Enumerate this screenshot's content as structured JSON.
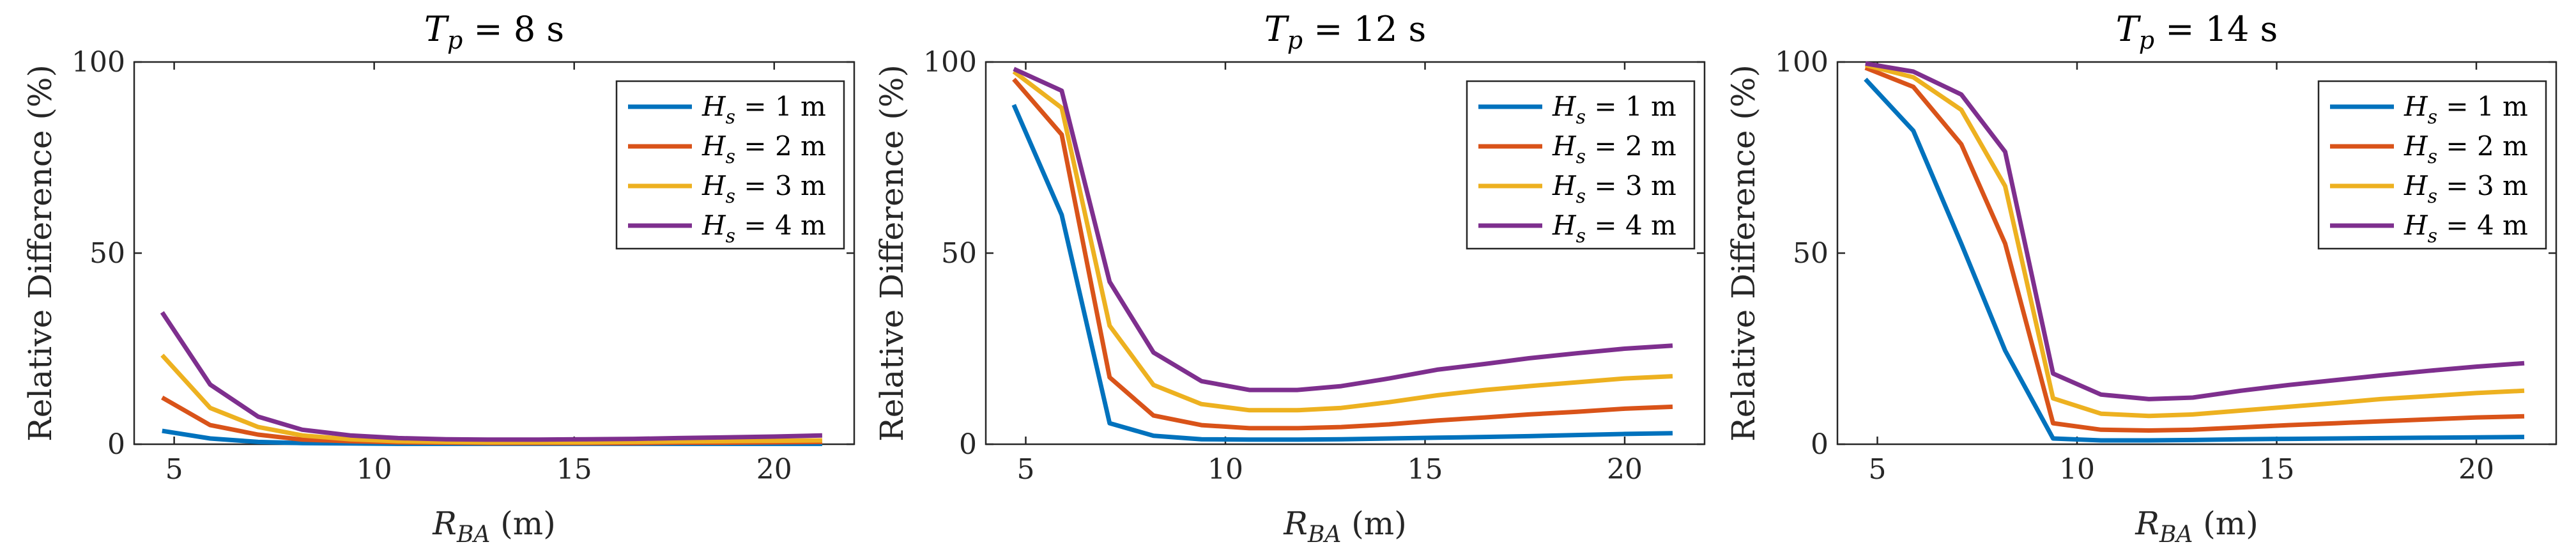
{
  "chart_data": [
    {
      "type": "line",
      "title": "T_p = 8 s",
      "title_parts": {
        "var": "T",
        "sub": "p",
        "rest": " = 8 s"
      },
      "xlabel": "R_BA (m)",
      "xlabel_parts": {
        "var": "R",
        "sub": "BA",
        "rest": " (m)"
      },
      "ylabel": "Relative Difference (%)",
      "xlim": [
        4,
        22
      ],
      "ylim": [
        0,
        100
      ],
      "xticks": [
        5,
        10,
        15,
        20
      ],
      "yticks": [
        0,
        50,
        100
      ],
      "x": [
        4.7,
        5.9,
        7.1,
        8.2,
        9.4,
        10.6,
        11.8,
        12.9,
        14.1,
        15.3,
        16.5,
        17.6,
        18.8,
        20.0,
        21.2
      ],
      "series": [
        {
          "name": "H_s = 1 m",
          "label_parts": {
            "var": "H",
            "sub": "s",
            "rest": " = 1 m"
          },
          "color": "#0072BD",
          "values": [
            3.5,
            1.5,
            0.6,
            0.3,
            0.2,
            0.1,
            0.1,
            0.1,
            0.1,
            0.1,
            0.1,
            0.1,
            0.1,
            0.1,
            0.1
          ]
        },
        {
          "name": "H_s = 2 m",
          "label_parts": {
            "var": "H",
            "sub": "s",
            "rest": " = 2 m"
          },
          "color": "#D95319",
          "values": [
            12.2,
            5.0,
            2.5,
            1.2,
            0.8,
            0.5,
            0.4,
            0.3,
            0.3,
            0.3,
            0.3,
            0.4,
            0.4,
            0.5,
            0.6
          ]
        },
        {
          "name": "H_s = 3 m",
          "label_parts": {
            "var": "H",
            "sub": "s",
            "rest": " = 3 m"
          },
          "color": "#EDB120",
          "values": [
            23.3,
            9.5,
            4.5,
            2.3,
            1.3,
            0.8,
            0.6,
            0.5,
            0.5,
            0.5,
            0.6,
            0.7,
            0.8,
            0.9,
            1.0
          ]
        },
        {
          "name": "H_s = 4 m",
          "label_parts": {
            "var": "H",
            "sub": "s",
            "rest": " = 4 m"
          },
          "color": "#7E2F8E",
          "values": [
            34.5,
            15.6,
            7.2,
            3.8,
            2.3,
            1.6,
            1.3,
            1.2,
            1.2,
            1.3,
            1.4,
            1.6,
            1.8,
            2.0,
            2.3
          ]
        }
      ],
      "legend": "top-right"
    },
    {
      "type": "line",
      "title": "T_p = 12 s",
      "title_parts": {
        "var": "T",
        "sub": "p",
        "rest": " = 12 s"
      },
      "xlabel": "R_BA (m)",
      "xlabel_parts": {
        "var": "R",
        "sub": "BA",
        "rest": " (m)"
      },
      "ylabel": "Relative Difference (%)",
      "xlim": [
        4,
        22
      ],
      "ylim": [
        0,
        100
      ],
      "xticks": [
        5,
        10,
        15,
        20
      ],
      "yticks": [
        0,
        50,
        100
      ],
      "x": [
        4.7,
        5.9,
        7.1,
        8.2,
        9.4,
        10.6,
        11.8,
        12.9,
        14.1,
        15.3,
        16.5,
        17.6,
        18.8,
        20.0,
        21.2
      ],
      "series": [
        {
          "name": "H_s = 1 m",
          "label_parts": {
            "var": "H",
            "sub": "s",
            "rest": " = 1 m"
          },
          "color": "#0072BD",
          "values": [
            88.8,
            60.0,
            5.5,
            2.2,
            1.3,
            1.2,
            1.2,
            1.3,
            1.5,
            1.7,
            1.9,
            2.1,
            2.4,
            2.7,
            2.9
          ]
        },
        {
          "name": "H_s = 2 m",
          "label_parts": {
            "var": "H",
            "sub": "s",
            "rest": " = 2 m"
          },
          "color": "#D95319",
          "values": [
            95.5,
            81.0,
            17.5,
            7.5,
            5.0,
            4.2,
            4.2,
            4.5,
            5.2,
            6.2,
            7.0,
            7.8,
            8.5,
            9.3,
            9.8
          ]
        },
        {
          "name": "H_s = 3 m",
          "label_parts": {
            "var": "H",
            "sub": "s",
            "rest": " = 3 m"
          },
          "color": "#EDB120",
          "values": [
            97.5,
            88.0,
            31.0,
            15.5,
            10.5,
            8.9,
            8.9,
            9.5,
            11.0,
            12.8,
            14.2,
            15.2,
            16.2,
            17.2,
            17.8
          ]
        },
        {
          "name": "H_s = 4 m",
          "label_parts": {
            "var": "H",
            "sub": "s",
            "rest": " = 4 m"
          },
          "color": "#7E2F8E",
          "values": [
            98.2,
            92.5,
            42.5,
            24.0,
            16.5,
            14.2,
            14.2,
            15.2,
            17.2,
            19.5,
            21.0,
            22.5,
            23.8,
            25.0,
            25.8
          ]
        }
      ],
      "legend": "top-right"
    },
    {
      "type": "line",
      "title": "T_p = 14 s",
      "title_parts": {
        "var": "T",
        "sub": "p",
        "rest": " = 14 s"
      },
      "xlabel": "R_BA (m)",
      "xlabel_parts": {
        "var": "R",
        "sub": "BA",
        "rest": " (m)"
      },
      "ylabel": "Relative Difference (%)",
      "xlim": [
        4,
        22
      ],
      "ylim": [
        0,
        100
      ],
      "xticks": [
        5,
        10,
        15,
        20
      ],
      "yticks": [
        0,
        50,
        100
      ],
      "x": [
        4.7,
        5.9,
        7.1,
        8.2,
        9.4,
        10.6,
        11.8,
        12.9,
        14.1,
        15.3,
        16.5,
        17.6,
        18.8,
        20.0,
        21.2
      ],
      "series": [
        {
          "name": "H_s = 1 m",
          "label_parts": {
            "var": "H",
            "sub": "s",
            "rest": " = 1 m"
          },
          "color": "#0072BD",
          "values": [
            95.5,
            82.0,
            52.5,
            24.5,
            1.5,
            1.0,
            1.0,
            1.1,
            1.3,
            1.4,
            1.5,
            1.6,
            1.7,
            1.8,
            1.9
          ]
        },
        {
          "name": "H_s = 2 m",
          "label_parts": {
            "var": "H",
            "sub": "s",
            "rest": " = 2 m"
          },
          "color": "#D95319",
          "values": [
            98.5,
            93.5,
            78.5,
            52.5,
            5.5,
            3.8,
            3.6,
            3.8,
            4.4,
            5.0,
            5.5,
            6.0,
            6.5,
            7.0,
            7.3
          ]
        },
        {
          "name": "H_s = 3 m",
          "label_parts": {
            "var": "H",
            "sub": "s",
            "rest": " = 3 m"
          },
          "color": "#EDB120",
          "values": [
            99.2,
            96.0,
            87.5,
            67.5,
            12.0,
            8.0,
            7.4,
            7.8,
            8.8,
            9.8,
            10.8,
            11.8,
            12.6,
            13.4,
            14.0
          ]
        },
        {
          "name": "H_s = 4 m",
          "label_parts": {
            "var": "H",
            "sub": "s",
            "rest": " = 4 m"
          },
          "color": "#7E2F8E",
          "values": [
            99.6,
            97.5,
            91.5,
            76.5,
            18.5,
            13.0,
            11.8,
            12.2,
            14.0,
            15.5,
            16.8,
            18.0,
            19.2,
            20.3,
            21.2
          ]
        }
      ],
      "legend": "top-right"
    }
  ]
}
